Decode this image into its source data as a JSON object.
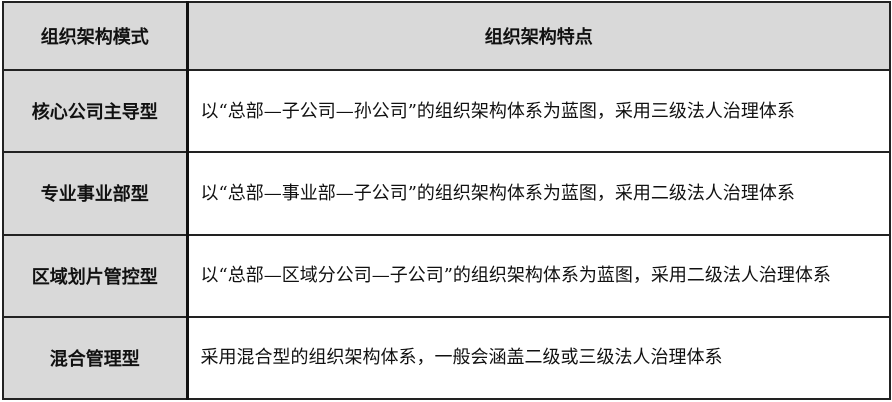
{
  "table": {
    "headers": [
      "组织架构模式",
      "组织架构特点"
    ],
    "rows": [
      {
        "mode": "核心公司主导型",
        "feature": "以“总部—子公司—孙公司”的组织架构体系为蓝图，采用三级法人治理体系"
      },
      {
        "mode": "专业事业部型",
        "feature": "以“总部—事业部—子公司”的组织架构体系为蓝图，采用二级法人治理体系"
      },
      {
        "mode": "区域划片管控型",
        "feature": "以“总部—区域分公司—子公司”的组织架构体系为蓝图，采用二级法人治理体系"
      },
      {
        "mode": "混合管理型",
        "feature": "采用混合型的组织架构体系，一般会涵盖二级或三级法人治理体系"
      }
    ]
  }
}
